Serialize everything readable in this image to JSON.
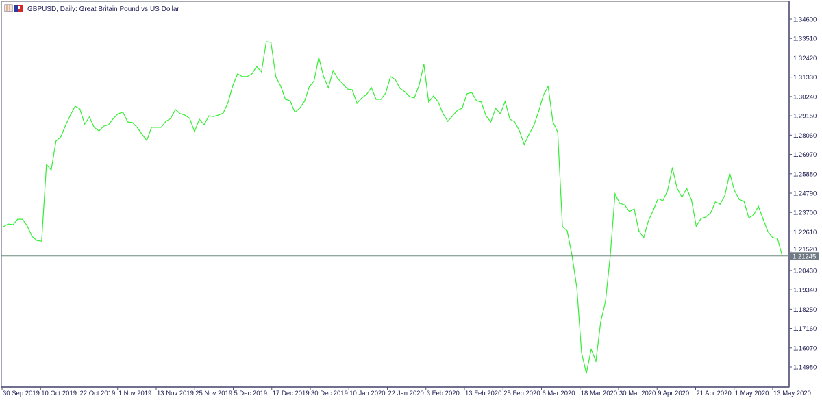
{
  "window": {
    "title": "GBPUSD, Daily:  Great Britain Pound vs US Dollar",
    "icons": [
      "chart-window-icon",
      "symbol-flag-icon"
    ]
  },
  "chart_data": {
    "type": "line",
    "title": "GBPUSD, Daily:  Great Britain Pound vs US Dollar",
    "xlabel": "",
    "ylabel": "",
    "ylim": [
      1.1444,
      1.3515
    ],
    "y_ticks": [
      "1.34600",
      "1.33510",
      "1.32420",
      "1.31330",
      "1.30240",
      "1.29150",
      "1.28060",
      "1.26970",
      "1.25880",
      "1.24790",
      "1.23700",
      "1.22610",
      "1.21520",
      "1.20430",
      "1.19340",
      "1.18250",
      "1.17160",
      "1.16070",
      "1.14980"
    ],
    "x_ticks": [
      "30 Sep 2019",
      "10 Oct 2019",
      "22 Oct 2019",
      "1 Nov 2019",
      "13 Nov 2019",
      "25 Nov 2019",
      "5 Dec 2019",
      "17 Dec 2019",
      "30 Dec 2019",
      "10 Jan 2020",
      "22 Jan 2020",
      "3 Feb 2020",
      "13 Feb 2020",
      "25 Feb 2020",
      "6 Mar 2020",
      "18 Mar 2020",
      "30 Mar 2020",
      "9 Apr 2020",
      "21 Apr 2020",
      "1 May 2020",
      "13 May 2020"
    ],
    "grid": false,
    "legend": "none",
    "current_price": "1.21245",
    "colors": {
      "line": "#33ee33",
      "price_line": "#6f8a7f",
      "price_label_bg": "#6f7a84",
      "axis": "#55557a",
      "text": "#1a1a50"
    },
    "series": [
      {
        "values": [
          1.229,
          1.2305,
          1.2301,
          1.2332,
          1.2332,
          1.2293,
          1.2235,
          1.2212,
          1.2208,
          1.2641,
          1.261,
          1.2772,
          1.2796,
          1.2861,
          1.2919,
          1.2969,
          1.2954,
          1.2869,
          1.2908,
          1.285,
          1.283,
          1.2857,
          1.2865,
          1.29,
          1.2927,
          1.2935,
          1.2881,
          1.2877,
          1.285,
          1.2811,
          1.2776,
          1.285,
          1.285,
          1.285,
          1.2884,
          1.29,
          1.295,
          1.2927,
          1.2919,
          1.29,
          1.2826,
          1.2896,
          1.2865,
          1.2915,
          1.2911,
          1.2919,
          1.2931,
          1.2989,
          1.3085,
          1.3151,
          1.3136,
          1.3136,
          1.3151,
          1.3193,
          1.3163,
          1.3333,
          1.3329,
          1.3136,
          1.3085,
          1.3008,
          1.3,
          1.2935,
          1.2958,
          1.2996,
          1.3078,
          1.3112,
          1.3244,
          1.3136,
          1.3074,
          1.317,
          1.3124,
          1.3097,
          1.3066,
          1.3062,
          1.2985,
          1.3016,
          1.3035,
          1.3074,
          1.3008,
          1.3008,
          1.3043,
          1.3136,
          1.312,
          1.307,
          1.3051,
          1.3024,
          1.3016,
          1.3089,
          1.3205,
          1.2993,
          1.3027,
          1.2993,
          1.2927,
          1.2884,
          1.2915,
          1.2946,
          1.2958,
          1.3039,
          1.3047,
          1.3,
          1.2993,
          1.2915,
          1.2881,
          1.2958,
          1.2927,
          1.2996,
          1.2896,
          1.2881,
          1.283,
          1.2753,
          1.2811,
          1.2861,
          1.2939,
          1.3031,
          1.3081,
          1.2881,
          1.2823,
          1.229,
          1.2266,
          1.2127,
          1.1946,
          1.1579,
          1.1463,
          1.1598,
          1.1532,
          1.1753,
          1.1868,
          1.2127,
          1.2475,
          1.2421,
          1.2413,
          1.2375,
          1.239,
          1.2266,
          1.2228,
          1.2324,
          1.2382,
          1.2448,
          1.2436,
          1.2494,
          1.2622,
          1.2506,
          1.2456,
          1.2506,
          1.244,
          1.2293,
          1.2336,
          1.2344,
          1.2367,
          1.2429,
          1.2417,
          1.2467,
          1.2591,
          1.2494,
          1.2444,
          1.2432,
          1.234,
          1.2355,
          1.2405,
          1.2332,
          1.2262,
          1.2228,
          1.2224,
          1.21245
        ]
      }
    ]
  }
}
